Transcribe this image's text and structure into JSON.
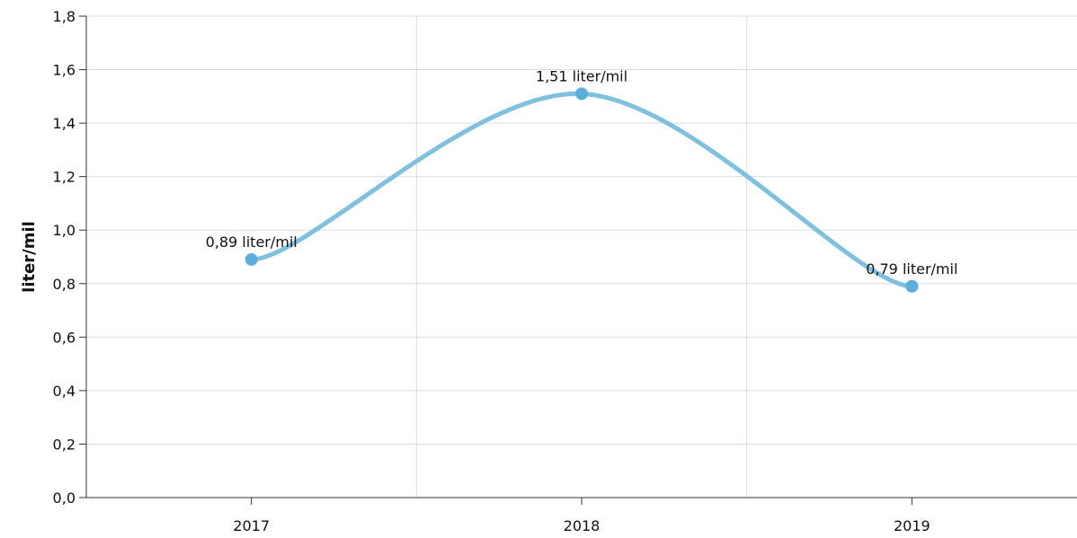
{
  "chart_data": {
    "type": "line",
    "categories": [
      "2017",
      "2018",
      "2019"
    ],
    "series": [
      {
        "values": [
          0.89,
          1.51,
          0.79
        ],
        "color": "#7ec0e0",
        "marker_color": "#5aaedb"
      }
    ],
    "data_labels": [
      "0,89 liter/mil",
      "1,51 liter/mil",
      "0,79 liter/mil"
    ],
    "ylabel": "liter/mil",
    "xlabel": "",
    "ylim": [
      0,
      1.8
    ],
    "yticks": [
      "0,0",
      "0,2",
      "0,4",
      "0,6",
      "0,8",
      "1,0",
      "1,2",
      "1,4",
      "1,6",
      "1,8"
    ],
    "grid": true,
    "smooth": true,
    "gridline_color": "#dddddd",
    "axis_color": "#333333"
  }
}
